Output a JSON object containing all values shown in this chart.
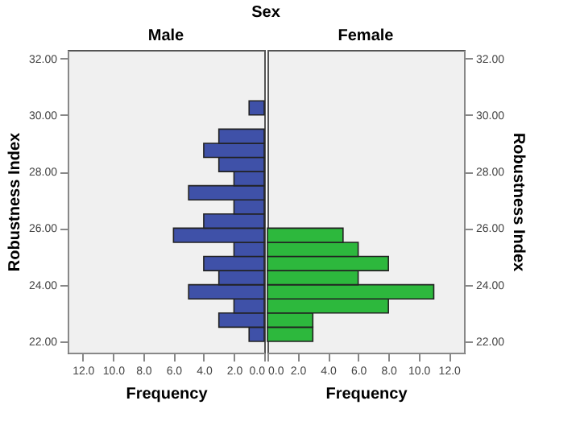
{
  "chart_data": [
    {
      "type": "histogram",
      "orientation": "horizontal",
      "title": "Male",
      "annotations": [
        "Sex"
      ],
      "xlabel": "Frequency",
      "ylabel": "Robustness Index",
      "bins": [
        22,
        22.5,
        23,
        23.5,
        24,
        24.5,
        25,
        25.5,
        26,
        26.5,
        27,
        27.5,
        28,
        28.5,
        29,
        29.5,
        30,
        30.5
      ],
      "values": [
        1,
        3,
        2,
        5,
        3,
        4,
        2,
        6,
        4,
        2,
        5,
        2,
        3,
        4,
        3,
        0,
        1
      ],
      "color": "#3f51a8",
      "xlim": [
        13,
        0
      ],
      "xticks": [
        {
          "value": 12,
          "label": "12.0"
        },
        {
          "value": 10,
          "label": "10.0"
        },
        {
          "value": 8,
          "label": "8.0"
        },
        {
          "value": 6,
          "label": "6.0"
        },
        {
          "value": 4,
          "label": "4.0"
        },
        {
          "value": 2,
          "label": "2.0"
        },
        {
          "value": 0,
          "label": "0.0"
        }
      ],
      "ylim": [
        21.6,
        32.3
      ],
      "yticks": [
        {
          "value": 22,
          "label": "22.00"
        },
        {
          "value": 24,
          "label": "24.00"
        },
        {
          "value": 26,
          "label": "26.00"
        },
        {
          "value": 28,
          "label": "28.00"
        },
        {
          "value": 30,
          "label": "30.00"
        },
        {
          "value": 32,
          "label": "32.00"
        }
      ],
      "grid": false
    },
    {
      "type": "histogram",
      "orientation": "horizontal",
      "title": "Female",
      "xlabel": "Frequency",
      "ylabel": "Robustness Index",
      "bins": [
        22,
        22.5,
        23,
        23.5,
        24,
        24.5,
        25,
        25.5,
        26
      ],
      "values": [
        3,
        3,
        8,
        11,
        6,
        8,
        6,
        5
      ],
      "color": "#2db83d",
      "xlim": [
        0,
        13
      ],
      "xticks": [
        {
          "value": 0,
          "label": "0.0"
        },
        {
          "value": 2,
          "label": "2.0"
        },
        {
          "value": 4,
          "label": "4.0"
        },
        {
          "value": 6,
          "label": "6.0"
        },
        {
          "value": 8,
          "label": "8.0"
        },
        {
          "value": 10,
          "label": "10.0"
        },
        {
          "value": 12,
          "label": "12.0"
        }
      ],
      "ylim": [
        21.6,
        32.3
      ],
      "yticks": [
        {
          "value": 22,
          "label": "22.00"
        },
        {
          "value": 24,
          "label": "24.00"
        },
        {
          "value": 26,
          "label": "26.00"
        },
        {
          "value": 28,
          "label": "28.00"
        },
        {
          "value": 30,
          "label": "30.00"
        },
        {
          "value": 32,
          "label": "32.00"
        }
      ],
      "grid": false
    }
  ]
}
